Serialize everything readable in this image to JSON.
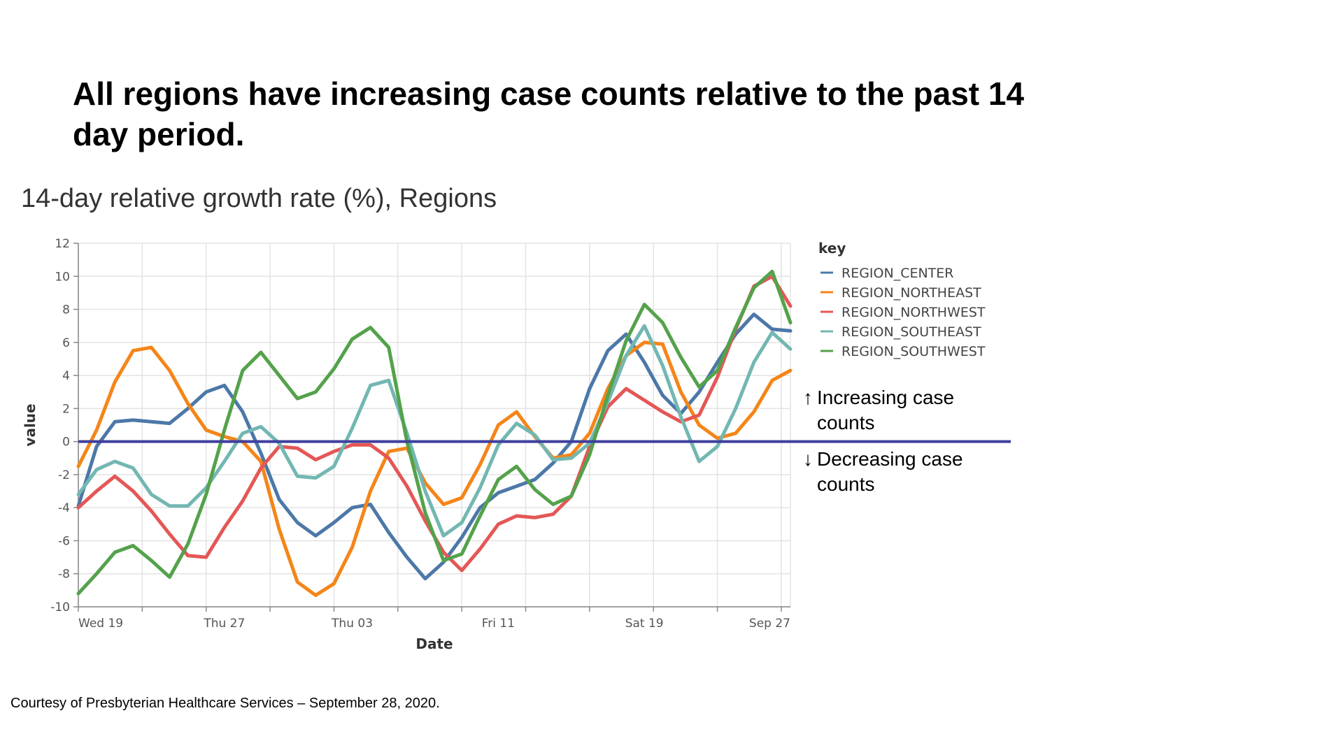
{
  "headline": "All regions have increasing case counts relative to the past 14 day period.",
  "chart_data": {
    "type": "line",
    "title": "14-day relative growth rate (%), Regions",
    "xlabel": "Date",
    "ylabel": "value",
    "ylim": [
      -10,
      12
    ],
    "yticks": [
      12,
      10,
      8,
      6,
      4,
      2,
      0,
      -2,
      -4,
      -6,
      -8,
      -10
    ],
    "x_tick_labels": [
      {
        "label": "Wed 19",
        "day": 0
      },
      {
        "label": "Thu 27",
        "day": 8
      },
      {
        "label": "Thu 03",
        "day": 15
      },
      {
        "label": "Fri 11",
        "day": 23
      },
      {
        "label": "Sat 19",
        "day": 31
      },
      {
        "label": "Sep 27",
        "day": 39
      }
    ],
    "x_range_days": [
      0,
      39
    ],
    "x": [
      0,
      1,
      2,
      3,
      4,
      5,
      6,
      7,
      8,
      9,
      10,
      11,
      12,
      13,
      14,
      15,
      16,
      17,
      18,
      19,
      20,
      21,
      22,
      23,
      24,
      25,
      26,
      27,
      28,
      29,
      30,
      31,
      32,
      33,
      34,
      35,
      36,
      37,
      38,
      39
    ],
    "grid": true,
    "legend_title": "key",
    "legend_position": "right",
    "reference_line": {
      "y": 0,
      "color": "#3f3f9f"
    },
    "series": [
      {
        "name": "REGION_CENTER",
        "color": "#4c78a8",
        "values": [
          -3.9,
          -0.3,
          1.2,
          1.3,
          1.2,
          1.1,
          2.0,
          3.0,
          3.4,
          1.8,
          -0.7,
          -3.5,
          -4.9,
          -5.7,
          -4.9,
          -4.0,
          -3.8,
          -5.5,
          -7.0,
          -8.3,
          -7.3,
          -5.8,
          -4.0,
          -3.1,
          -2.7,
          -2.3,
          -1.3,
          0.0,
          3.2,
          5.5,
          6.5,
          4.8,
          2.8,
          1.7,
          3.0,
          4.8,
          6.5,
          7.7,
          6.8,
          6.7
        ]
      },
      {
        "name": "REGION_NORTHEAST",
        "color": "#f58518",
        "values": [
          -1.5,
          0.7,
          3.6,
          5.5,
          5.7,
          4.3,
          2.3,
          0.7,
          0.3,
          0.0,
          -1.2,
          -5.3,
          -8.5,
          -9.3,
          -8.6,
          -6.4,
          -3.0,
          -0.6,
          -0.4,
          -2.5,
          -3.8,
          -3.4,
          -1.4,
          1.0,
          1.8,
          0.3,
          -1.0,
          -0.8,
          0.5,
          3.2,
          5.2,
          6.0,
          5.9,
          3.0,
          1.0,
          0.2,
          0.5,
          1.8,
          3.7,
          4.3
        ]
      },
      {
        "name": "REGION_NORTHWEST",
        "color": "#e45756",
        "values": [
          -4.0,
          -3.0,
          -2.1,
          -3.0,
          -4.2,
          -5.6,
          -6.9,
          -7.0,
          -5.2,
          -3.6,
          -1.6,
          -0.3,
          -0.4,
          -1.1,
          -0.6,
          -0.2,
          -0.2,
          -1.0,
          -2.7,
          -4.8,
          -6.7,
          -7.8,
          -6.5,
          -5.0,
          -4.5,
          -4.6,
          -4.4,
          -3.3,
          -0.3,
          2.1,
          3.2,
          2.5,
          1.8,
          1.2,
          1.6,
          3.9,
          6.8,
          9.4,
          10.0,
          8.2
        ]
      },
      {
        "name": "REGION_SOUTHEAST",
        "color": "#72b7b2",
        "values": [
          -3.2,
          -1.7,
          -1.2,
          -1.6,
          -3.2,
          -3.9,
          -3.9,
          -2.8,
          -1.2,
          0.5,
          0.9,
          -0.1,
          -2.1,
          -2.2,
          -1.5,
          0.8,
          3.4,
          3.7,
          0.5,
          -3.0,
          -5.7,
          -4.9,
          -2.8,
          -0.2,
          1.1,
          0.4,
          -1.1,
          -1.0,
          -0.1,
          2.4,
          5.2,
          7.0,
          4.6,
          1.5,
          -1.2,
          -0.3,
          2.0,
          4.8,
          6.6,
          5.6
        ]
      },
      {
        "name": "REGION_SOUTHWEST",
        "color": "#54a24b",
        "values": [
          -9.2,
          -8.0,
          -6.7,
          -6.3,
          -7.2,
          -8.2,
          -6.2,
          -3.2,
          0.7,
          4.3,
          5.4,
          4.0,
          2.6,
          3.0,
          4.4,
          6.2,
          6.9,
          5.7,
          0.0,
          -4.3,
          -7.2,
          -6.8,
          -4.5,
          -2.3,
          -1.5,
          -2.9,
          -3.8,
          -3.3,
          -0.8,
          2.8,
          6.1,
          8.3,
          7.2,
          5.1,
          3.3,
          4.3,
          6.9,
          9.3,
          10.3,
          7.2
        ]
      }
    ]
  },
  "notes": {
    "up_arrow": "↑",
    "up_line1": "Increasing case",
    "up_line2": "counts",
    "down_arrow": "↓",
    "down_line1": "Decreasing case",
    "down_line2": "counts"
  },
  "footer": "Courtesy of Presbyterian Healthcare Services – September 28, 2020."
}
